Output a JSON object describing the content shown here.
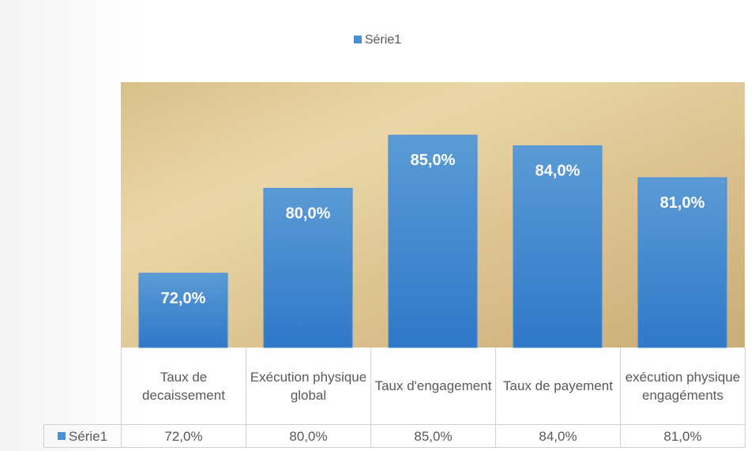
{
  "chart_data": {
    "type": "bar",
    "categories": [
      "Taux de decaissement",
      "Exécution physique global",
      "Taux d'engagement",
      "Taux de payement",
      "exécution physique engagéments"
    ],
    "series": [
      {
        "name": "Série1",
        "color": "#4a8fd6",
        "values": [
          72,
          80,
          85,
          84,
          81
        ],
        "value_labels": [
          "72,0%",
          "80,0%",
          "85,0%",
          "84,0%",
          "81,0%"
        ]
      }
    ],
    "ylim": [
      65,
      90
    ],
    "legend": "top",
    "data_table": true
  }
}
